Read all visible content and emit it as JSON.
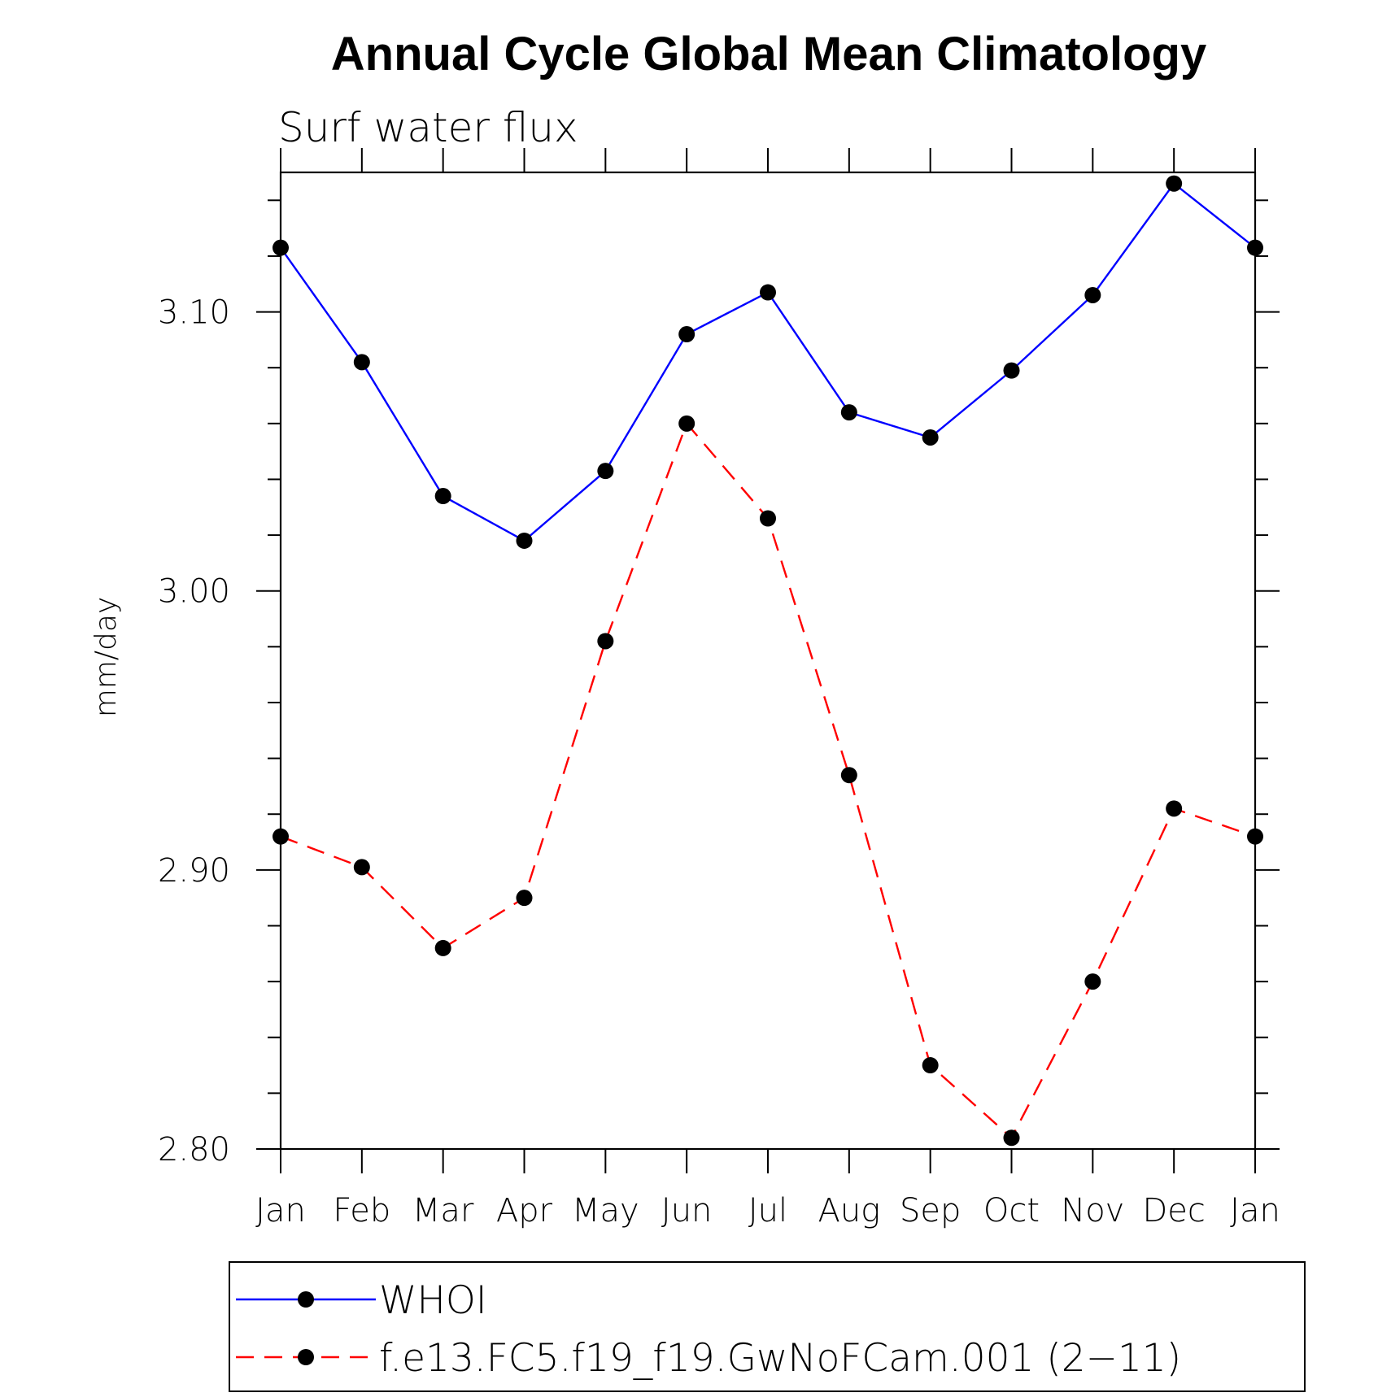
{
  "chart_data": {
    "type": "line",
    "title": "Annual Cycle Global Mean Climatology",
    "subtitle": "Surf water flux",
    "xlabel": "",
    "ylabel": "mm/day",
    "categories": [
      "Jan",
      "Feb",
      "Mar",
      "Apr",
      "May",
      "Jun",
      "Jul",
      "Aug",
      "Sep",
      "Oct",
      "Nov",
      "Dec",
      "Jan"
    ],
    "ylim": [
      2.8,
      3.15
    ],
    "yticks": [
      2.8,
      2.9,
      3.0,
      3.1
    ],
    "ytick_labels": [
      "2.80",
      "2.90",
      "3.00",
      "3.10"
    ],
    "grid": false,
    "legend_position": "bottom",
    "series": [
      {
        "name": "WHOI",
        "color": "#0000ff",
        "line_style": "solid",
        "marker": "filled-circle",
        "values": [
          3.123,
          3.082,
          3.034,
          3.018,
          3.043,
          3.092,
          3.107,
          3.064,
          3.055,
          3.079,
          3.106,
          3.146,
          3.123
        ]
      },
      {
        "name": "f.e13.FC5.f19_f19.GwNoFCam.001 (2−11)",
        "color": "#ff0000",
        "line_style": "dashed",
        "marker": "filled-circle",
        "values": [
          2.912,
          2.901,
          2.872,
          2.89,
          2.982,
          3.06,
          3.026,
          2.934,
          2.83,
          2.804,
          2.86,
          2.922,
          2.912
        ]
      }
    ]
  }
}
